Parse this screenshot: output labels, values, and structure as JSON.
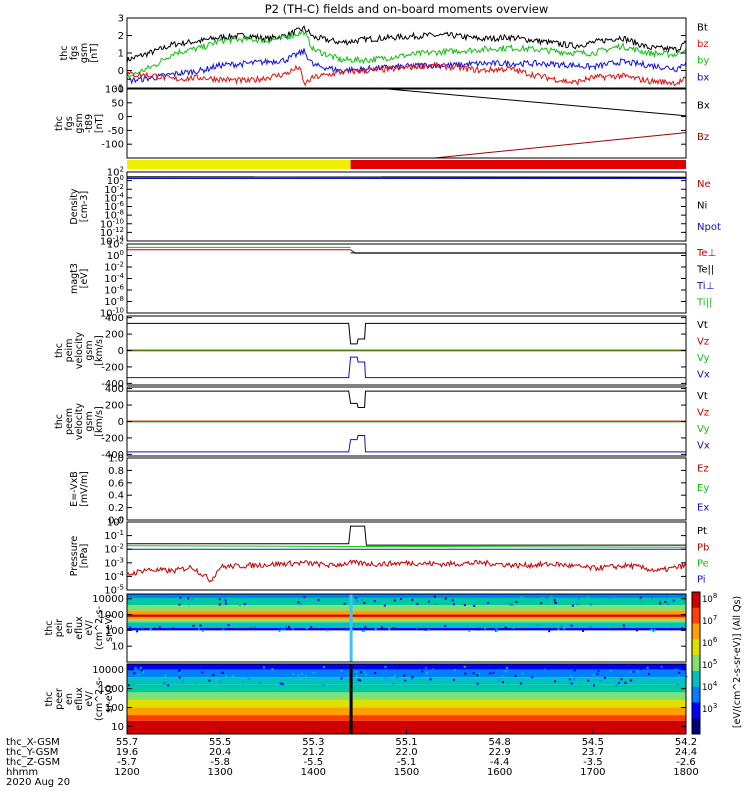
{
  "chart_data": {
    "type": "line",
    "title": "P2 (TH-C) fields and on-board moments overview",
    "x_range": [
      1200,
      1800
    ],
    "x_unit": "hhmm",
    "date": "2020 Aug 20",
    "panels": [
      {
        "id": "fgs",
        "ylabel": [
          "thc",
          "fgs",
          "gsm",
          "[nT]"
        ],
        "ylim": [
          -1,
          3
        ],
        "ticks": [
          "3",
          "2",
          "1",
          "0",
          "-1"
        ],
        "tick_values": [
          3,
          2,
          1,
          0,
          -1
        ],
        "legend": [
          {
            "label": "Bt",
            "color": "#000000"
          },
          {
            "label": "bz",
            "color": "#e01010"
          },
          {
            "label": "by",
            "color": "#10c010"
          },
          {
            "label": "bx",
            "color": "#1010e0"
          }
        ],
        "series": [
          {
            "name": "Bt",
            "color": "#000000",
            "x": [
              1200,
              1230,
              1250,
              1280,
              1300,
              1330,
              1350,
              1370,
              1390,
              1395,
              1400,
              1430,
              1460,
              1490,
              1520,
              1550,
              1580,
              1610,
              1640,
              1680,
              1700,
              1730,
              1760,
              1790,
              1800
            ],
            "y": [
              0.6,
              1.1,
              1.5,
              1.7,
              1.9,
              2.0,
              1.8,
              2.0,
              2.4,
              2.2,
              1.9,
              1.6,
              1.8,
              1.9,
              2.0,
              2.0,
              1.8,
              1.9,
              1.7,
              1.4,
              1.6,
              1.9,
              1.3,
              1.2,
              1.6
            ]
          },
          {
            "name": "by",
            "color": "#10c010",
            "x": [
              1200,
              1230,
              1250,
              1280,
              1300,
              1330,
              1350,
              1370,
              1390,
              1400,
              1430,
              1460,
              1490,
              1520,
              1550,
              1580,
              1610,
              1640,
              1680,
              1700,
              1730,
              1760,
              1790,
              1800
            ],
            "y": [
              -0.4,
              0.3,
              1.0,
              1.3,
              1.7,
              1.8,
              1.7,
              1.9,
              2.2,
              1.2,
              0.6,
              0.6,
              0.8,
              1.0,
              1.1,
              1.2,
              1.3,
              1.2,
              1.0,
              1.0,
              1.4,
              1.0,
              0.9,
              1.3
            ]
          },
          {
            "name": "bx",
            "color": "#1010e0",
            "x": [
              1200,
              1230,
              1250,
              1280,
              1300,
              1330,
              1350,
              1370,
              1390,
              1400,
              1430,
              1460,
              1490,
              1520,
              1550,
              1580,
              1610,
              1640,
              1680,
              1700,
              1730,
              1760,
              1790,
              1800
            ],
            "y": [
              -0.6,
              -0.4,
              -0.2,
              0.0,
              0.3,
              0.4,
              0.5,
              0.6,
              1.1,
              0.3,
              0.0,
              0.1,
              0.2,
              0.3,
              0.3,
              0.4,
              0.4,
              0.4,
              0.3,
              0.2,
              0.5,
              0.3,
              0.1,
              0.5
            ]
          },
          {
            "name": "bz",
            "color": "#e01010",
            "x": [
              1200,
              1230,
              1250,
              1280,
              1300,
              1330,
              1350,
              1370,
              1385,
              1390,
              1400,
              1430,
              1460,
              1490,
              1520,
              1550,
              1580,
              1610,
              1640,
              1680,
              1700,
              1730,
              1760,
              1790,
              1800
            ],
            "y": [
              -0.2,
              -0.3,
              -0.5,
              -0.4,
              -0.5,
              -0.6,
              -0.4,
              -0.2,
              0.2,
              -0.8,
              -0.4,
              -0.1,
              0.0,
              0.1,
              0.3,
              0.2,
              0.0,
              0.1,
              -0.3,
              -0.7,
              -0.4,
              -0.3,
              -0.6,
              -0.7,
              -0.5
            ]
          }
        ]
      },
      {
        "id": "fgs_model",
        "ylabel": [
          "thc",
          "fgs",
          "gsm",
          "-t89",
          "[nT]"
        ],
        "ylim": [
          -150,
          100
        ],
        "ticks": [
          "100",
          "50",
          "0",
          "-50",
          "-100"
        ],
        "tick_values": [
          100,
          50,
          0,
          -50,
          -100
        ],
        "legend": [
          {
            "label": "Bx",
            "color": "#000000"
          },
          {
            "label": "Bz",
            "color": "#a00000"
          }
        ],
        "series": [
          {
            "name": "Bx",
            "color": "#000000",
            "x": [
              1480,
              1800
            ],
            "y": [
              100,
              3
            ]
          },
          {
            "name": "Bz",
            "color": "#a00000",
            "x": [
              1530,
              1800
            ],
            "y": [
              -150,
              -58
            ]
          }
        ]
      },
      {
        "id": "density",
        "ylabel": [
          "Density",
          "[cm-3]"
        ],
        "log": true,
        "ylim": [
          -14,
          2
        ],
        "ticks": [
          "10^2",
          "10^0",
          "10^-2",
          "10^-4",
          "10^-6",
          "10^-8",
          "10^-10",
          "10^-12",
          "10^-14"
        ],
        "tick_values": [
          2,
          0,
          -2,
          -4,
          -6,
          -8,
          -10,
          -12,
          -14
        ],
        "legend": [
          {
            "label": "Ne",
            "color": "#c00000"
          },
          {
            "label": "Ni",
            "color": "#000000"
          },
          {
            "label": "Npot",
            "color": "#1010c0"
          }
        ],
        "series": [
          {
            "name": "Ne",
            "color": "#c00000",
            "x": [
              1200,
              1800
            ],
            "y": [
              0.8,
              0.7
            ]
          },
          {
            "name": "Ni",
            "color": "#000000",
            "x": [
              1200,
              1800
            ],
            "y": [
              0.9,
              0.8
            ]
          },
          {
            "name": "Npot",
            "color": "#1010c0",
            "x": [
              1200,
              1800
            ],
            "y": [
              0.5,
              0.5
            ]
          }
        ]
      },
      {
        "id": "magt3",
        "ylabel": [
          "magt3",
          "[eV]"
        ],
        "log": true,
        "ylim": [
          -10,
          2
        ],
        "ticks": [
          "10^2",
          "10^0",
          "10^-2",
          "10^-4",
          "10^-6",
          "10^-8",
          "10^-10"
        ],
        "tick_values": [
          2,
          0,
          -2,
          -4,
          -6,
          -8,
          -10
        ],
        "legend": [
          {
            "label": "Te⊥",
            "color": "#c00000"
          },
          {
            "label": "Te||",
            "color": "#000000"
          },
          {
            "label": "Ti⊥",
            "color": "#1010c0"
          },
          {
            "label": "Ti||",
            "color": "#10c010"
          }
        ],
        "series": [
          {
            "name": "Ti||",
            "color": "#10c010",
            "x": [
              1200,
              1440
            ],
            "y": [
              1.4,
              1.4
            ]
          },
          {
            "name": "Te⊥",
            "color": "#c00000",
            "x": [
              1200,
              1440,
              1445,
              1800
            ],
            "y": [
              1.0,
              1.0,
              0.4,
              0.4
            ]
          },
          {
            "name": "Te||",
            "color": "#000000",
            "x": [
              1440,
              1800
            ],
            "y": [
              0.45,
              0.45
            ]
          }
        ]
      },
      {
        "id": "peim",
        "ylabel": [
          "thc",
          "peim",
          "velocity",
          "gsm",
          "[km/s]"
        ],
        "ylim": [
          -420,
          420
        ],
        "ticks": [
          "400",
          "200",
          "0",
          "-200",
          "-400"
        ],
        "tick_values": [
          400,
          200,
          0,
          -200,
          -400
        ],
        "legend": [
          {
            "label": "Vt",
            "color": "#000000"
          },
          {
            "label": "Vz",
            "color": "#c00000"
          },
          {
            "label": "Vy",
            "color": "#10c010"
          },
          {
            "label": "Vx",
            "color": "#1010c0"
          }
        ],
        "series": [
          {
            "name": "Vt",
            "color": "#000000",
            "x": [
              1200,
              1438,
              1440,
              1447,
              1448,
              1455,
              1456,
              1800
            ],
            "y": [
              330,
              330,
              80,
              80,
              140,
              140,
              330,
              330
            ]
          },
          {
            "name": "Vz",
            "color": "#c00000",
            "x": [
              1200,
              1800
            ],
            "y": [
              5,
              5
            ]
          },
          {
            "name": "Vy",
            "color": "#10c010",
            "x": [
              1200,
              1800
            ],
            "y": [
              -5,
              -5
            ]
          },
          {
            "name": "Vx",
            "color": "#1010c0",
            "x": [
              1200,
              1438,
              1440,
              1447,
              1448,
              1455,
              1456,
              1800
            ],
            "y": [
              -330,
              -330,
              -80,
              -80,
              -140,
              -140,
              -330,
              -330
            ]
          }
        ]
      },
      {
        "id": "peem",
        "ylabel": [
          "thc",
          "peem",
          "velocity",
          "gsm",
          "[km/s]"
        ],
        "ylim": [
          -420,
          420
        ],
        "ticks": [
          "400",
          "200",
          "0",
          "-200",
          "-400"
        ],
        "tick_values": [
          400,
          200,
          0,
          -200,
          -400
        ],
        "legend": [
          {
            "label": "Vt",
            "color": "#000000"
          },
          {
            "label": "Vz",
            "color": "#c00000"
          },
          {
            "label": "Vy",
            "color": "#10c010"
          },
          {
            "label": "Vx",
            "color": "#1010c0"
          }
        ],
        "series": [
          {
            "name": "Vt",
            "color": "#000000",
            "x": [
              1200,
              1438,
              1440,
              1447,
              1448,
              1455,
              1456,
              1800
            ],
            "y": [
              370,
              370,
              220,
              220,
              170,
              170,
              370,
              370
            ]
          },
          {
            "name": "Vz",
            "color": "#c00000",
            "x": [
              1200,
              1800
            ],
            "y": [
              5,
              5
            ]
          },
          {
            "name": "Vy",
            "color": "#10c010",
            "x": [
              1200,
              1800
            ],
            "y": [
              -5,
              -5
            ]
          },
          {
            "name": "Vx",
            "color": "#1010c0",
            "x": [
              1200,
              1438,
              1440,
              1447,
              1448,
              1455,
              1456,
              1800
            ],
            "y": [
              -370,
              -370,
              -220,
              -220,
              -170,
              -170,
              -370,
              -370
            ]
          }
        ]
      },
      {
        "id": "efield",
        "ylabel": [
          "E=-VxB",
          "[mV/m]"
        ],
        "ylim": [
          0,
          1
        ],
        "ticks": [
          "1.0",
          "0.8",
          "0.6",
          "0.4",
          "0.2",
          "0.0"
        ],
        "tick_values": [
          1,
          0.8,
          0.6,
          0.4,
          0.2,
          0
        ],
        "legend": [
          {
            "label": "Ez",
            "color": "#c00000"
          },
          {
            "label": "Ey",
            "color": "#10c010"
          },
          {
            "label": "Ex",
            "color": "#1010c0"
          }
        ],
        "series": []
      },
      {
        "id": "pressure",
        "ylabel": [
          "Pressure",
          "[nPa]"
        ],
        "log": true,
        "ylim": [
          -5,
          0
        ],
        "ticks": [
          "10^0",
          "10^-1",
          "10^-2",
          "10^-3",
          "10^-4",
          "10^-5"
        ],
        "tick_values": [
          0,
          -1,
          -2,
          -3,
          -4,
          -5
        ],
        "legend": [
          {
            "label": "Pt",
            "color": "#000000"
          },
          {
            "label": "Pb",
            "color": "#c00000"
          },
          {
            "label": "Pe",
            "color": "#10c010"
          },
          {
            "label": "Pi",
            "color": "#1010c0"
          }
        ],
        "series": [
          {
            "name": "Pt",
            "color": "#000000",
            "x": [
              1200,
              1438,
              1440,
              1455,
              1457,
              1800
            ],
            "y": [
              -1.6,
              -1.6,
              -0.3,
              -0.3,
              -1.7,
              -1.7
            ]
          },
          {
            "name": "Pe",
            "color": "#10c010",
            "x": [
              1200,
              1800
            ],
            "y": [
              -1.75,
              -1.85
            ]
          },
          {
            "name": "Pi",
            "color": "#1010c0",
            "x": [
              1200,
              1800
            ],
            "y": [
              -2.0,
              -2.0
            ]
          },
          {
            "name": "Pb",
            "color": "#c00000",
            "x": [
              1200,
              1220,
              1250,
              1270,
              1290,
              1300,
              1330,
              1360,
              1390,
              1420,
              1440,
              1470,
              1500,
              1540,
              1580,
              1620,
              1660,
              1700,
              1740,
              1770,
              1800
            ],
            "y": [
              -3.9,
              -3.5,
              -3.6,
              -3.3,
              -4.3,
              -3.3,
              -3.2,
              -3.1,
              -3.0,
              -3.2,
              -3.0,
              -3.1,
              -3.0,
              -3.1,
              -3.0,
              -3.2,
              -3.1,
              -3.4,
              -3.2,
              -3.6,
              -3.2
            ]
          }
        ]
      },
      {
        "id": "peir",
        "ylabel": [
          "thc",
          "peir",
          "en",
          "eflux",
          "eV/",
          "(cm^2-s-",
          "sr-eV)"
        ],
        "log": true,
        "spectrogram": true,
        "ylim": [
          0,
          4.3
        ],
        "ticks": [
          "10000",
          "1000",
          "100",
          "10"
        ],
        "tick_values": [
          4,
          3,
          2,
          1
        ]
      },
      {
        "id": "peer",
        "ylabel": [
          "thc",
          "peer",
          "en",
          "eflux",
          "eV/",
          "(cm^2-s-",
          "sr-eV)"
        ],
        "log": true,
        "spectrogram": true,
        "ylim": [
          0.6,
          4.3
        ],
        "ticks": [
          "10000",
          "1000",
          "100",
          "10"
        ],
        "tick_values": [
          4,
          3,
          2,
          1
        ]
      }
    ],
    "status_bar": [
      {
        "from": 1200,
        "to": 1440,
        "color": "#f0f000"
      },
      {
        "from": 1440,
        "to": 1800,
        "color": "#e00000"
      }
    ],
    "colorbar": {
      "label": "[eV/(cm^2-s-sr-eV)] (All Qs)",
      "ticks": [
        "10^8",
        "10^7",
        "10^6",
        "10^5",
        "10^4",
        "10^3"
      ]
    },
    "x_axis": {
      "row_labels": [
        "thc_X-GSM",
        "thc_Y-GSM",
        "thc_Z-GSM",
        "hhmm",
        "2020 Aug 20"
      ],
      "ticks": [
        1200,
        1300,
        1400,
        1500,
        1600,
        1700,
        1800
      ],
      "rows": [
        [
          "55.7",
          "55.5",
          "55.3",
          "55.1",
          "54.8",
          "54.5",
          "54.2"
        ],
        [
          "19.6",
          "20.4",
          "21.2",
          "22.0",
          "22.9",
          "23.7",
          "24.4"
        ],
        [
          "-5.7",
          "-5.8",
          "-5.5",
          "-5.1",
          "-4.4",
          "-3.5",
          "-2.6"
        ],
        [
          "1200",
          "1300",
          "1400",
          "1500",
          "1600",
          "1700",
          "1800"
        ]
      ]
    }
  }
}
